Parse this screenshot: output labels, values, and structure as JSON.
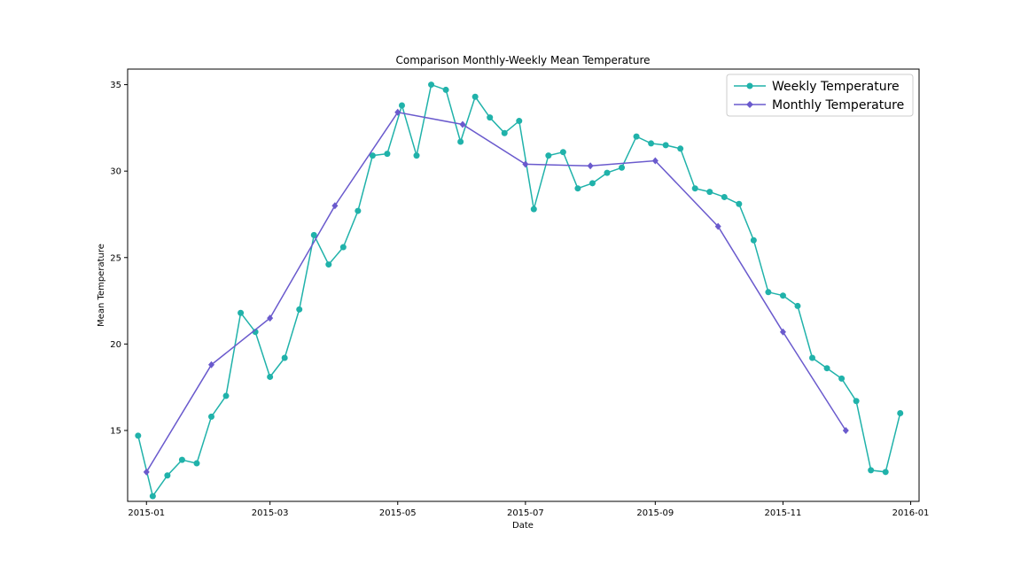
{
  "chart_data": {
    "type": "line",
    "title": "Comparison Monthly-Weekly Mean Temperature",
    "xlabel": "Date",
    "ylabel": "Mean Temperature",
    "x_ticks": [
      "2015-01",
      "2015-03",
      "2015-05",
      "2015-07",
      "2015-09",
      "2015-11",
      "2016-01"
    ],
    "y_ticks": [
      15,
      20,
      25,
      30,
      35
    ],
    "xlim": [
      "2014-12-23",
      "2016-01-05"
    ],
    "ylim": [
      10.9,
      35.9
    ],
    "grid": false,
    "legend_position": "top-right",
    "series": [
      {
        "name": "Weekly Temperature",
        "color": "#20b2aa",
        "marker": "circle",
        "points": [
          [
            "2014-12-28",
            14.7
          ],
          [
            "2015-01-04",
            11.2
          ],
          [
            "2015-01-11",
            12.4
          ],
          [
            "2015-01-18",
            13.3
          ],
          [
            "2015-01-25",
            13.1
          ],
          [
            "2015-02-01",
            15.8
          ],
          [
            "2015-02-08",
            17.0
          ],
          [
            "2015-02-15",
            21.8
          ],
          [
            "2015-02-22",
            20.7
          ],
          [
            "2015-03-01",
            18.1
          ],
          [
            "2015-03-08",
            19.2
          ],
          [
            "2015-03-15",
            22.0
          ],
          [
            "2015-03-22",
            26.3
          ],
          [
            "2015-03-29",
            24.6
          ],
          [
            "2015-04-05",
            25.6
          ],
          [
            "2015-04-12",
            27.7
          ],
          [
            "2015-04-19",
            30.9
          ],
          [
            "2015-04-26",
            31.0
          ],
          [
            "2015-05-03",
            33.8
          ],
          [
            "2015-05-10",
            30.9
          ],
          [
            "2015-05-17",
            35.0
          ],
          [
            "2015-05-24",
            34.7
          ],
          [
            "2015-05-31",
            31.7
          ],
          [
            "2015-06-07",
            34.3
          ],
          [
            "2015-06-14",
            33.1
          ],
          [
            "2015-06-21",
            32.2
          ],
          [
            "2015-06-28",
            32.9
          ],
          [
            "2015-07-05",
            27.8
          ],
          [
            "2015-07-12",
            30.9
          ],
          [
            "2015-07-19",
            31.1
          ],
          [
            "2015-07-26",
            29.0
          ],
          [
            "2015-08-02",
            29.3
          ],
          [
            "2015-08-09",
            29.9
          ],
          [
            "2015-08-16",
            30.2
          ],
          [
            "2015-08-23",
            32.0
          ],
          [
            "2015-08-30",
            31.6
          ],
          [
            "2015-09-06",
            31.5
          ],
          [
            "2015-09-13",
            31.3
          ],
          [
            "2015-09-20",
            29.0
          ],
          [
            "2015-09-27",
            28.8
          ],
          [
            "2015-10-04",
            28.5
          ],
          [
            "2015-10-11",
            28.1
          ],
          [
            "2015-10-18",
            26.0
          ],
          [
            "2015-10-25",
            23.0
          ],
          [
            "2015-11-01",
            22.8
          ],
          [
            "2015-11-08",
            22.2
          ],
          [
            "2015-11-15",
            19.2
          ],
          [
            "2015-11-22",
            18.6
          ],
          [
            "2015-11-29",
            18.0
          ],
          [
            "2015-12-06",
            16.7
          ],
          [
            "2015-12-13",
            12.7
          ],
          [
            "2015-12-20",
            12.6
          ],
          [
            "2015-12-27",
            16.0
          ]
        ]
      },
      {
        "name": "Monthly Temperature",
        "color": "#6a5acd",
        "marker": "diamond",
        "points": [
          [
            "2015-01-01",
            12.6
          ],
          [
            "2015-02-01",
            18.8
          ],
          [
            "2015-03-01",
            21.5
          ],
          [
            "2015-04-01",
            28.0
          ],
          [
            "2015-05-01",
            33.4
          ],
          [
            "2015-06-01",
            32.7
          ],
          [
            "2015-07-01",
            30.4
          ],
          [
            "2015-08-01",
            30.3
          ],
          [
            "2015-09-01",
            30.6
          ],
          [
            "2015-10-01",
            26.8
          ],
          [
            "2015-11-01",
            20.7
          ],
          [
            "2015-12-01",
            15.0
          ]
        ]
      }
    ]
  }
}
